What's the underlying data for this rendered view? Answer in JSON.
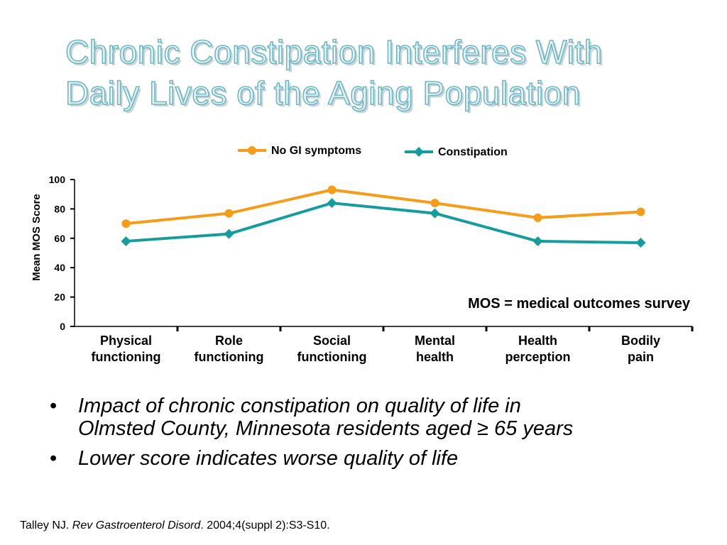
{
  "slide": {
    "title_lines": [
      "Chronic Constipation Interferes With",
      "Daily Lives of the Aging Population"
    ],
    "bullets": [
      {
        "lines": [
          "Impact of chronic constipation on quality of life in",
          "Olmsted County, Minnesota residents aged ≥ 65 years"
        ]
      },
      {
        "lines": [
          "Lower score indicates worse quality of life"
        ]
      }
    ],
    "citation": {
      "author": "Talley NJ. ",
      "journal": "Rev Gastroenterol Disord",
      "rest": ". 2004;4(suppl 2):S3-S10."
    }
  },
  "chart_data": {
    "type": "line",
    "title": "",
    "ylabel": "Mean MOS Score",
    "xlabel": "",
    "ylim": [
      0,
      100
    ],
    "yticks": [
      0,
      20,
      40,
      60,
      80,
      100
    ],
    "grid": false,
    "legend_position": "top",
    "categories": [
      [
        "Physical",
        "functioning"
      ],
      [
        "Role",
        "functioning"
      ],
      [
        "Social",
        "functioning"
      ],
      [
        "Mental",
        "health"
      ],
      [
        "Health",
        "perception"
      ],
      [
        "Bodily",
        "pain"
      ]
    ],
    "series": [
      {
        "name": "No GI symptoms",
        "color": "#f59c1a",
        "marker": "circle",
        "values": [
          70,
          77,
          93,
          84,
          74,
          78
        ]
      },
      {
        "name": "Constipation",
        "color": "#169c9c",
        "marker": "diamond",
        "values": [
          58,
          63,
          84,
          77,
          58,
          57
        ]
      }
    ],
    "annotation": "MOS = medical outcomes survey"
  }
}
